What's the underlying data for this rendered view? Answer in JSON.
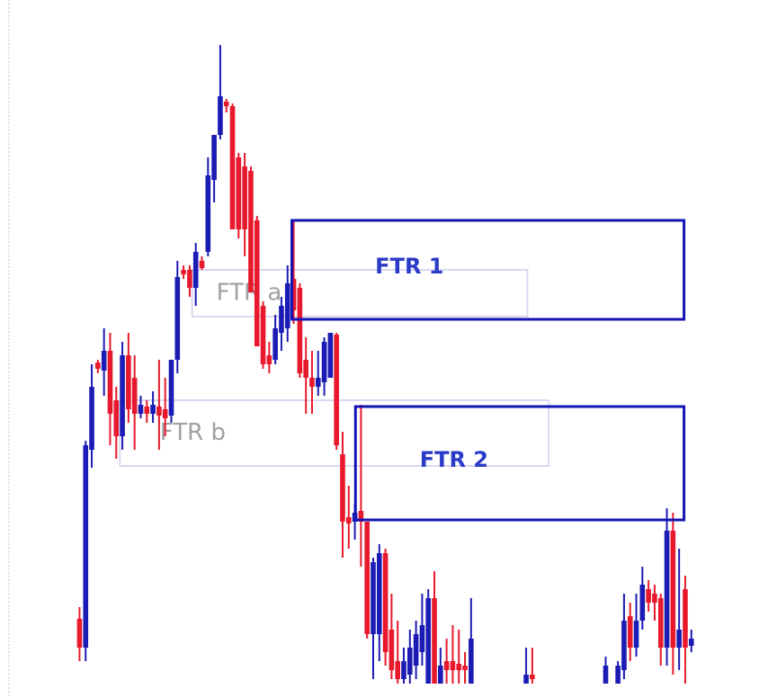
{
  "chart_data": {
    "type": "candlestick",
    "x": [
      0,
      1,
      2,
      3,
      4,
      5,
      6,
      7,
      8,
      9,
      10,
      11,
      12,
      13,
      14,
      15,
      16,
      17,
      18,
      19,
      20,
      21,
      22,
      23,
      24,
      25,
      26,
      27,
      28,
      29,
      30,
      31,
      32,
      33,
      34,
      35,
      36,
      37,
      38,
      39,
      40,
      41,
      42,
      43,
      44,
      45,
      46,
      47,
      48,
      49,
      50,
      51,
      52,
      53,
      54,
      55,
      56,
      57,
      58,
      59,
      60,
      61,
      62,
      63,
      64,
      73,
      74,
      86,
      88,
      89,
      90,
      91,
      92,
      93,
      94,
      95,
      96,
      97,
      98,
      99,
      100
    ],
    "open": [
      88,
      56,
      276,
      373,
      364,
      386,
      331,
      291,
      381,
      356,
      316,
      324,
      316,
      324,
      321,
      314,
      376,
      476,
      476,
      456,
      486,
      496,
      576,
      626,
      663,
      658,
      601,
      591,
      586,
      531,
      436,
      381,
      376,
      406,
      411,
      466,
      456,
      376,
      356,
      346,
      351,
      356,
      404,
      271,
      201,
      196,
      208,
      196,
      71,
      71,
      161,
      76,
      41,
      21,
      26,
      36,
      51,
      16,
      111,
      16,
      41,
      41,
      38,
      36,
      16,
      16,
      26,
      16,
      16,
      31,
      91,
      56,
      86,
      121,
      116,
      111,
      56,
      186,
      56,
      121,
      58
    ],
    "high": [
      101,
      286,
      371,
      376,
      411,
      406,
      346,
      396,
      406,
      381,
      336,
      331,
      341,
      376,
      356,
      376,
      486,
      481,
      481,
      506,
      491,
      601,
      626,
      726,
      666,
      661,
      606,
      606,
      591,
      536,
      441,
      396,
      426,
      446,
      481,
      531,
      461,
      401,
      386,
      386,
      401,
      406,
      406,
      296,
      236,
      216,
      326,
      196,
      156,
      171,
      166,
      116,
      86,
      56,
      76,
      86,
      116,
      121,
      141,
      56,
      66,
      81,
      76,
      51,
      111,
      56,
      56,
      46,
      41,
      116,
      106,
      116,
      146,
      131,
      126,
      116,
      211,
      206,
      166,
      136,
      76
    ],
    "low": [
      41,
      41,
      256,
      361,
      336,
      281,
      266,
      276,
      306,
      276,
      311,
      306,
      306,
      276,
      291,
      306,
      361,
      466,
      446,
      436,
      476,
      491,
      551,
      621,
      651,
      521,
      511,
      491,
      451,
      391,
      366,
      361,
      371,
      386,
      396,
      416,
      356,
      316,
      316,
      336,
      336,
      356,
      276,
      156,
      166,
      176,
      146,
      66,
      21,
      41,
      36,
      21,
      16,
      16,
      16,
      21,
      36,
      16,
      16,
      16,
      16,
      16,
      16,
      16,
      16,
      16,
      16,
      16,
      16,
      21,
      41,
      46,
      76,
      96,
      86,
      36,
      36,
      26,
      31,
      16,
      51
    ],
    "close": [
      56,
      281,
      346,
      366,
      386,
      316,
      291,
      381,
      321,
      316,
      326,
      316,
      326,
      314,
      311,
      376,
      468,
      471,
      456,
      496,
      478,
      581,
      626,
      669,
      658,
      521,
      521,
      521,
      451,
      391,
      371,
      371,
      411,
      436,
      461,
      431,
      361,
      356,
      346,
      356,
      396,
      406,
      281,
      196,
      194,
      206,
      196,
      71,
      151,
      161,
      51,
      31,
      21,
      41,
      56,
      71,
      81,
      111,
      16,
      36,
      31,
      31,
      31,
      31,
      66,
      26,
      21,
      36,
      36,
      86,
      56,
      86,
      126,
      106,
      106,
      56,
      186,
      56,
      76,
      56,
      66
    ],
    "up_color": "#1b1bb5",
    "down_color": "#e8192c",
    "xlim": [
      -13,
      114
    ],
    "ylim": [
      0,
      776
    ],
    "zones": [
      {
        "label": "FTR a",
        "top": 476,
        "bottom": 424,
        "x0": 18.4,
        "x1": 73.2,
        "color": "#d8d8f2",
        "style": "light"
      },
      {
        "label": "FTR b",
        "top": 331,
        "bottom": 258,
        "x0": 6.6,
        "x1": 76.7,
        "color": "#d8d8f2",
        "style": "light"
      },
      {
        "label": "FTR 1",
        "top": 531,
        "bottom": 421,
        "x0": 34.7,
        "x1": 98.8,
        "color": "#1414b4",
        "style": "strong"
      },
      {
        "label": "FTR 2",
        "top": 324,
        "bottom": 198,
        "x0": 45.1,
        "x1": 98.8,
        "color": "#1414b4",
        "style": "strong"
      }
    ]
  }
}
